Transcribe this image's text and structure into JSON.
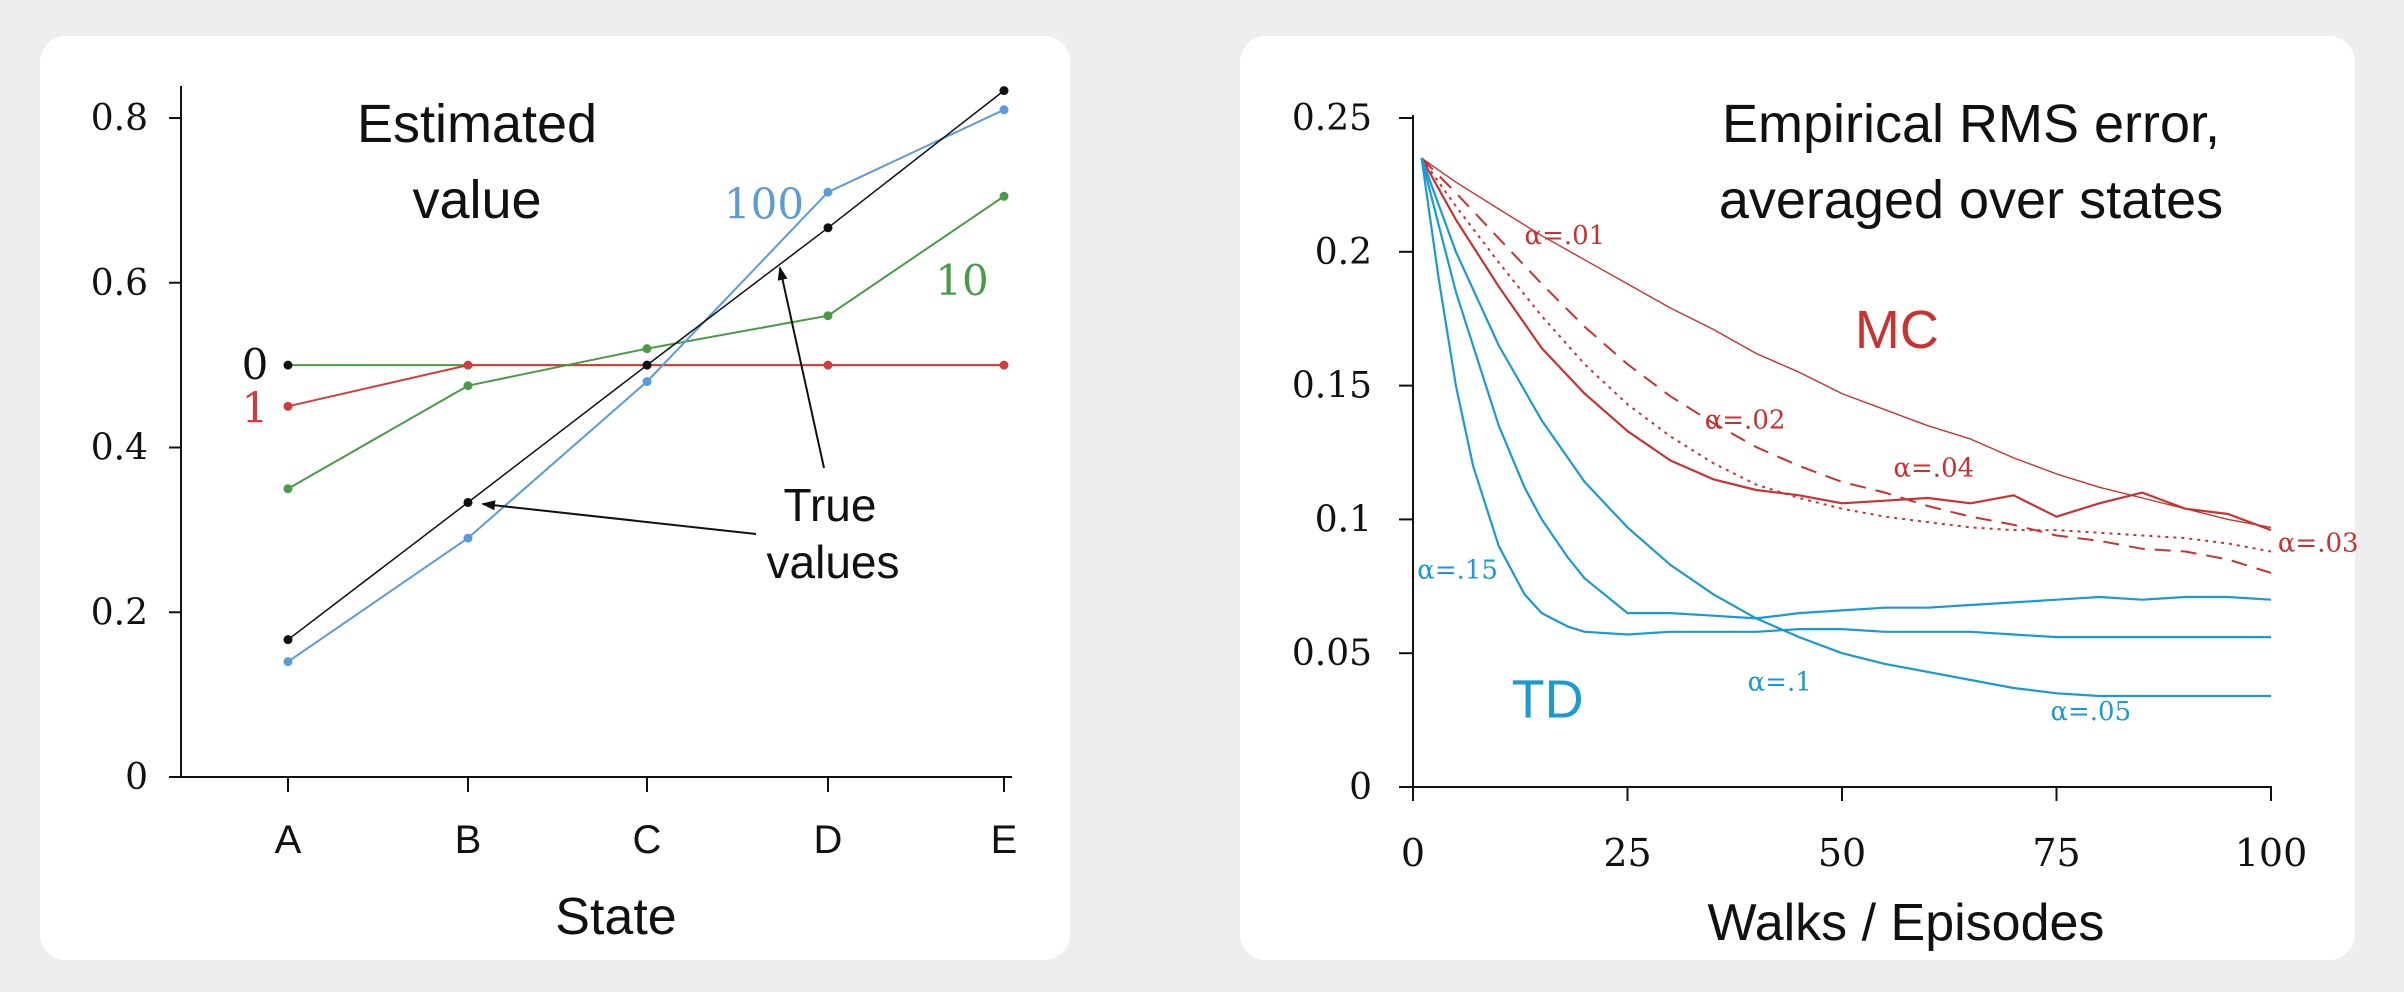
{
  "colors": {
    "black": "#111111",
    "red": "#d23c3c",
    "green": "#4a9a4a",
    "blue": "#5b9bd5",
    "teal": "#1a9ad0",
    "mc_red": "#c83232"
  },
  "chart_data": [
    {
      "type": "line",
      "title": "Estimated value",
      "title_lines": [
        "Estimated",
        "value"
      ],
      "xlabel": "State",
      "ylabel": "",
      "categories": [
        "A",
        "B",
        "C",
        "D",
        "E"
      ],
      "ylim": [
        0,
        0.84
      ],
      "yticks": [
        0,
        0.2,
        0.4,
        0.6,
        0.8
      ],
      "ytick_labels": [
        "0",
        "0.2",
        "0.4",
        "0.6",
        "0.8"
      ],
      "series": [
        {
          "name": "0",
          "color": "#4a9a4a",
          "label_color": "#111111",
          "values": [
            0.5,
            0.5,
            0.5,
            0.5,
            0.5
          ],
          "label_at": "left"
        },
        {
          "name": "1",
          "color": "#d23c3c",
          "label_color": "#d23c3c",
          "values": [
            0.45,
            0.5,
            0.5,
            0.5,
            0.5
          ],
          "label_at": "left"
        },
        {
          "name": "10",
          "color": "#4a9a4a",
          "label_color": "#4a9a4a",
          "values": [
            0.35,
            0.475,
            0.52,
            0.56,
            0.705
          ],
          "label_at": "right"
        },
        {
          "name": "100",
          "color": "#5b9bd5",
          "label_color": "#5b9bd5",
          "values": [
            0.14,
            0.29,
            0.48,
            0.71,
            0.81
          ],
          "label_at": "middle"
        },
        {
          "name": "",
          "color": "#111111",
          "values": [
            0.1667,
            0.3333,
            0.5,
            0.6667,
            0.8333
          ],
          "label_at": "none"
        }
      ],
      "annotation": {
        "text_lines": [
          "True",
          "values"
        ]
      }
    },
    {
      "type": "line",
      "title": "Empirical RMS error, averaged over states",
      "title_lines": [
        "Empirical RMS error,",
        "averaged over states"
      ],
      "xlabel": "Walks / Episodes",
      "ylabel": "",
      "xlim": [
        0,
        100
      ],
      "ylim": [
        0,
        0.25
      ],
      "xticks": [
        0,
        25,
        50,
        75,
        100
      ],
      "xtick_labels": [
        "0",
        "25",
        "50",
        "75",
        "100"
      ],
      "yticks": [
        0,
        0.05,
        0.1,
        0.15,
        0.2,
        0.25
      ],
      "ytick_labels": [
        "0",
        "0.05",
        "0.1",
        "0.15",
        "0.2",
        "0.25"
      ],
      "method_labels": {
        "mc": "MC",
        "td": "TD"
      },
      "series": [
        {
          "name": "α=.01",
          "method": "MC",
          "style": "solid-thin",
          "x": [
            1,
            5,
            10,
            15,
            20,
            25,
            30,
            35,
            40,
            45,
            50,
            55,
            60,
            65,
            70,
            75,
            80,
            85,
            90,
            95,
            100
          ],
          "y": [
            0.235,
            0.226,
            0.216,
            0.206,
            0.197,
            0.188,
            0.179,
            0.171,
            0.162,
            0.155,
            0.147,
            0.141,
            0.135,
            0.13,
            0.123,
            0.117,
            0.112,
            0.108,
            0.104,
            0.1,
            0.097
          ]
        },
        {
          "name": "α=.02",
          "method": "MC",
          "style": "dashed",
          "x": [
            1,
            5,
            10,
            15,
            20,
            25,
            30,
            35,
            40,
            45,
            50,
            55,
            60,
            65,
            70,
            75,
            80,
            85,
            90,
            95,
            100
          ],
          "y": [
            0.235,
            0.222,
            0.205,
            0.188,
            0.172,
            0.158,
            0.146,
            0.136,
            0.127,
            0.12,
            0.114,
            0.11,
            0.105,
            0.101,
            0.098,
            0.094,
            0.092,
            0.089,
            0.088,
            0.085,
            0.08
          ]
        },
        {
          "name": "α=.03",
          "method": "MC",
          "style": "dotted",
          "x": [
            1,
            5,
            10,
            15,
            20,
            25,
            30,
            35,
            40,
            45,
            50,
            55,
            60,
            65,
            70,
            75,
            80,
            85,
            90,
            95,
            100
          ],
          "y": [
            0.235,
            0.217,
            0.196,
            0.176,
            0.158,
            0.143,
            0.131,
            0.121,
            0.113,
            0.108,
            0.104,
            0.101,
            0.099,
            0.097,
            0.096,
            0.096,
            0.095,
            0.094,
            0.093,
            0.091,
            0.088
          ]
        },
        {
          "name": "α=.04",
          "method": "MC",
          "style": "solid",
          "x": [
            1,
            5,
            10,
            15,
            20,
            25,
            30,
            35,
            40,
            45,
            50,
            55,
            60,
            65,
            70,
            75,
            80,
            85,
            90,
            95,
            100
          ],
          "y": [
            0.235,
            0.212,
            0.187,
            0.164,
            0.147,
            0.133,
            0.122,
            0.115,
            0.111,
            0.109,
            0.106,
            0.107,
            0.108,
            0.106,
            0.109,
            0.101,
            0.106,
            0.11,
            0.104,
            0.102,
            0.096
          ]
        },
        {
          "name": "α=.15",
          "method": "TD",
          "style": "solid",
          "x": [
            1,
            3,
            5,
            7,
            10,
            13,
            15,
            18,
            20,
            25,
            30,
            35,
            40,
            45,
            50,
            55,
            60,
            65,
            70,
            75,
            80,
            85,
            90,
            95,
            100
          ],
          "y": [
            0.235,
            0.19,
            0.15,
            0.12,
            0.09,
            0.072,
            0.065,
            0.06,
            0.058,
            0.057,
            0.058,
            0.058,
            0.058,
            0.059,
            0.059,
            0.058,
            0.058,
            0.058,
            0.057,
            0.056,
            0.056,
            0.056,
            0.056,
            0.056,
            0.056
          ]
        },
        {
          "name": "α=.1",
          "method": "TD",
          "style": "solid",
          "x": [
            1,
            3,
            5,
            8,
            10,
            13,
            15,
            18,
            20,
            25,
            30,
            35,
            40,
            45,
            50,
            55,
            60,
            65,
            70,
            75,
            80,
            85,
            90,
            95,
            100
          ],
          "y": [
            0.235,
            0.21,
            0.185,
            0.155,
            0.135,
            0.112,
            0.1,
            0.086,
            0.078,
            0.065,
            0.065,
            0.064,
            0.063,
            0.065,
            0.066,
            0.067,
            0.067,
            0.068,
            0.069,
            0.07,
            0.071,
            0.07,
            0.071,
            0.071,
            0.07
          ]
        },
        {
          "name": "α=.05",
          "method": "TD",
          "style": "solid",
          "x": [
            1,
            5,
            10,
            15,
            20,
            25,
            30,
            35,
            40,
            45,
            50,
            55,
            60,
            65,
            70,
            75,
            80,
            85,
            90,
            95,
            100
          ],
          "y": [
            0.235,
            0.2,
            0.165,
            0.137,
            0.114,
            0.097,
            0.083,
            0.072,
            0.063,
            0.056,
            0.05,
            0.046,
            0.043,
            0.04,
            0.037,
            0.035,
            0.034,
            0.034,
            0.034,
            0.034,
            0.034
          ]
        }
      ]
    }
  ]
}
